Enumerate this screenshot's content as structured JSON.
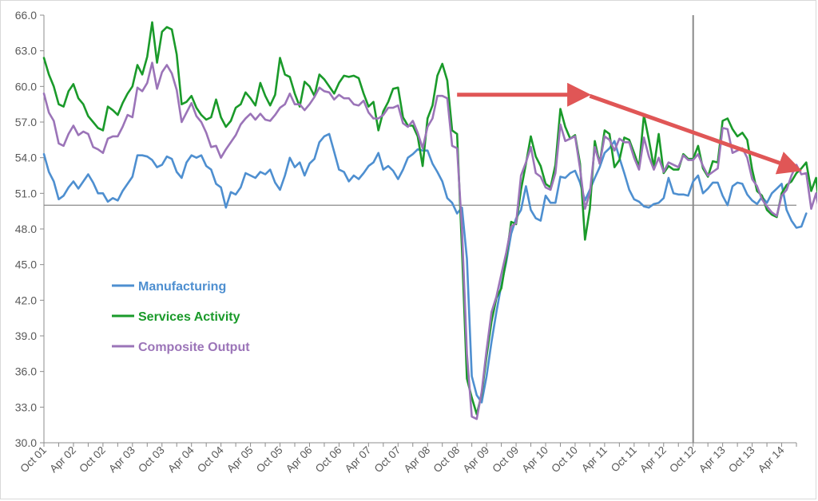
{
  "chart_data": {
    "type": "line",
    "title": "",
    "xlabel": "",
    "ylabel": "",
    "ylim": [
      30.0,
      66.0
    ],
    "yticks": [
      "30.0",
      "33.0",
      "36.0",
      "39.0",
      "42.0",
      "45.0",
      "48.0",
      "51.0",
      "54.0",
      "57.0",
      "60.0",
      "63.0",
      "66.0"
    ],
    "x_tick_labels": [
      "Oct 01",
      "Apr 02",
      "Oct 02",
      "Apr 03",
      "Oct 03",
      "Apr 04",
      "Oct 04",
      "Apr 05",
      "Oct 05",
      "Apr 06",
      "Oct 06",
      "Apr 07",
      "Oct 07",
      "Apr 08",
      "Oct 08",
      "Apr 09",
      "Oct 09",
      "Apr 10",
      "Oct 10",
      "Apr 11",
      "Oct 11",
      "Apr 12",
      "Oct 12",
      "Apr 13",
      "Oct 13",
      "Apr 14"
    ],
    "x_start": "Oct 01",
    "months": 154,
    "reference_line_y": 50.0,
    "vertical_marker": "Oct 12",
    "annotations": [
      {
        "type": "arrow",
        "description": "flat trend arrow",
        "from_month": 84,
        "from_y": 59.3,
        "to_month": 109,
        "to_y": 59.3,
        "color": "#e05656"
      },
      {
        "type": "arrow",
        "description": "declining trend arrow",
        "from_month": 111,
        "from_y": 59.2,
        "to_month": 152,
        "to_y": 53.2,
        "color": "#e05656"
      }
    ],
    "series": [
      {
        "name": "Manufacturing",
        "color": "#4e8fd0",
        "values": [
          54.3,
          52.8,
          52.0,
          50.5,
          50.8,
          51.5,
          52.0,
          51.4,
          52.0,
          52.6,
          51.9,
          51.0,
          51.0,
          50.3,
          50.6,
          50.4,
          51.2,
          51.8,
          52.4,
          54.2,
          54.2,
          54.1,
          53.8,
          53.2,
          53.4,
          54.1,
          53.9,
          52.8,
          52.3,
          53.6,
          54.2,
          54.0,
          54.2,
          53.3,
          53.0,
          51.8,
          51.5,
          49.8,
          51.1,
          50.9,
          51.5,
          52.7,
          52.5,
          52.3,
          52.8,
          52.6,
          53.0,
          51.9,
          51.3,
          52.5,
          54.0,
          53.2,
          53.6,
          52.5,
          53.5,
          53.9,
          55.3,
          55.8,
          56.0,
          54.5,
          53.0,
          52.8,
          52.0,
          52.5,
          52.2,
          52.7,
          53.3,
          53.6,
          54.4,
          53.0,
          53.3,
          52.9,
          52.2,
          53.0,
          54.0,
          54.3,
          54.7,
          54.6,
          54.6,
          53.5,
          52.8,
          52.0,
          50.6,
          50.2,
          49.3,
          49.8,
          45.5,
          35.6,
          34.0,
          33.4,
          35.6,
          38.5,
          41.0,
          43.3,
          45.2,
          47.6,
          48.9,
          49.6,
          51.6,
          49.6,
          48.9,
          48.7,
          50.8,
          50.2,
          50.2,
          52.4,
          52.3,
          52.7,
          52.9,
          51.9,
          50.4,
          51.3,
          52.3,
          53.2,
          54.4,
          54.8,
          55.4,
          54.0,
          52.7,
          51.3,
          50.5,
          50.3,
          49.9,
          49.8,
          50.1,
          50.2,
          50.6,
          52.3,
          51.0,
          50.9,
          50.9,
          50.8,
          52.0,
          52.5,
          51.0,
          51.4,
          51.9,
          51.9,
          50.8,
          50.0,
          51.6,
          51.9,
          51.8,
          50.9,
          50.4,
          50.1,
          50.7,
          50.2,
          51.0,
          51.4,
          51.8,
          49.6,
          48.7,
          48.1,
          48.2,
          49.3
        ]
      },
      {
        "name": "Services Activity",
        "color": "#1a9a2a",
        "values": [
          62.4,
          61.0,
          60.0,
          58.5,
          58.3,
          59.6,
          60.2,
          59.0,
          58.5,
          57.5,
          57.0,
          56.5,
          56.3,
          58.3,
          58.0,
          57.6,
          58.6,
          59.4,
          60.0,
          61.8,
          61.0,
          62.5,
          65.4,
          62.0,
          64.6,
          65.0,
          64.8,
          62.7,
          58.5,
          58.7,
          59.2,
          58.2,
          57.6,
          57.2,
          57.4,
          58.9,
          57.4,
          56.6,
          57.1,
          58.2,
          58.5,
          59.5,
          59.0,
          58.4,
          60.3,
          59.2,
          58.4,
          59.3,
          62.4,
          61.0,
          60.8,
          59.4,
          58.3,
          60.4,
          60.0,
          59.2,
          61.0,
          60.6,
          60.0,
          59.4,
          60.3,
          60.9,
          60.8,
          60.9,
          60.7,
          59.4,
          58.3,
          58.7,
          56.3,
          57.9,
          58.7,
          59.8,
          59.9,
          57.4,
          56.7,
          56.7,
          55.8,
          53.3,
          57.3,
          58.4,
          60.9,
          61.9,
          60.5,
          56.3,
          56.0,
          46.3,
          35.4,
          33.8,
          32.4,
          34.1,
          37.3,
          40.2,
          42.2,
          43.0,
          45.5,
          48.6,
          48.4,
          51.3,
          53.5,
          55.8,
          54.1,
          53.3,
          51.8,
          51.5,
          53.4,
          58.1,
          56.6,
          55.6,
          55.9,
          53.5,
          47.1,
          49.7,
          55.4,
          53.5,
          56.3,
          56.0,
          53.2,
          53.8,
          55.7,
          55.5,
          54.4,
          53.2,
          57.6,
          55.5,
          53.2,
          56.0,
          52.7,
          53.3,
          53.0,
          53.0,
          54.3,
          53.9,
          53.9,
          55.0,
          53.1,
          52.4,
          53.7,
          53.6,
          57.1,
          57.3,
          56.4,
          55.8,
          56.1,
          55.5,
          53.0,
          51.2,
          50.8,
          49.6,
          49.2,
          49.0,
          51.0,
          51.7,
          52.0,
          52.7,
          53.1,
          53.6,
          51.2,
          52.3,
          48.6
        ]
      },
      {
        "name": "Composite Output",
        "color": "#9b74b8",
        "values": [
          59.4,
          57.8,
          57.1,
          55.2,
          55.0,
          56.0,
          56.7,
          55.9,
          56.2,
          56.0,
          54.9,
          54.7,
          54.4,
          55.6,
          55.8,
          55.8,
          56.6,
          57.6,
          57.4,
          59.9,
          59.6,
          60.3,
          62.0,
          59.8,
          61.2,
          61.8,
          61.1,
          59.7,
          57.0,
          57.8,
          58.6,
          57.5,
          57.0,
          56.1,
          54.9,
          55.0,
          54.0,
          54.7,
          55.3,
          55.9,
          56.8,
          57.3,
          57.7,
          57.2,
          57.7,
          57.2,
          57.1,
          57.6,
          58.2,
          58.5,
          59.4,
          58.5,
          58.5,
          58.0,
          58.5,
          59.1,
          59.9,
          59.6,
          59.5,
          58.9,
          59.3,
          59.0,
          59.0,
          58.5,
          58.4,
          58.8,
          57.8,
          57.3,
          57.3,
          57.6,
          58.2,
          58.2,
          58.4,
          56.9,
          56.6,
          57.1,
          56.1,
          54.8,
          56.6,
          57.3,
          59.2,
          59.2,
          59.0,
          55.0,
          54.8,
          48.0,
          37.5,
          32.2,
          32.0,
          34.3,
          37.8,
          41.0,
          42.3,
          44.2,
          46.0,
          48.2,
          48.5,
          52.5,
          53.6,
          54.9,
          52.7,
          52.4,
          51.5,
          51.3,
          52.7,
          56.8,
          55.4,
          55.6,
          55.8,
          53.1,
          49.7,
          51.0,
          54.9,
          53.5,
          55.8,
          55.5,
          54.6,
          55.6,
          55.3,
          55.3,
          54.0,
          53.0,
          55.7,
          54.1,
          53.0,
          54.0,
          52.8,
          53.6,
          53.4,
          53.2,
          54.2,
          53.8,
          53.8,
          54.3,
          53.3,
          52.5,
          52.8,
          53.1,
          56.5,
          56.4,
          54.4,
          54.6,
          54.8,
          54.0,
          52.2,
          51.6,
          50.5,
          49.9,
          49.4,
          49.1,
          50.8,
          51.3,
          52.5,
          53.4,
          52.6,
          52.7,
          49.7,
          51.0,
          48.8
        ]
      }
    ]
  }
}
